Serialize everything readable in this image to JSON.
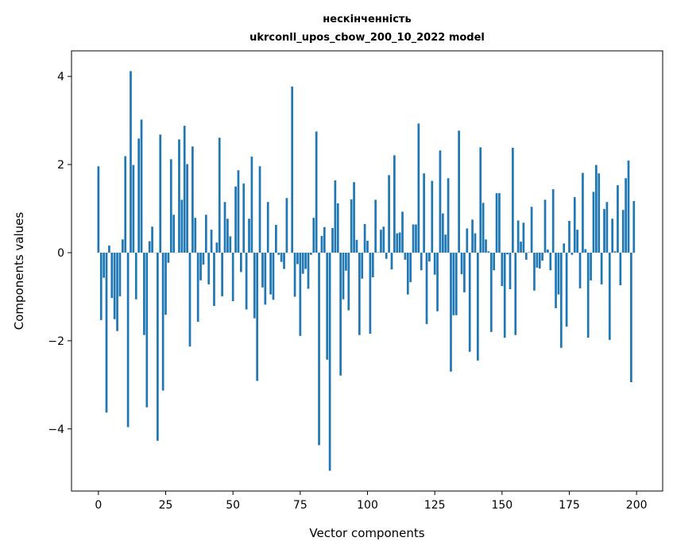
{
  "chart_data": {
    "type": "bar",
    "title": "нескінченність",
    "subtitle": "ukrconll_upos_cbow_200_10_2022 model",
    "xlabel": "Vector components",
    "ylabel": "Components values",
    "xlim": [
      -10,
      209.7
    ],
    "ylim": [
      -5.41,
      4.58
    ],
    "xticks": [
      0,
      25,
      50,
      75,
      100,
      125,
      150,
      175,
      200
    ],
    "yticks": [
      -4,
      -2,
      0,
      2,
      4
    ],
    "ytick_labels": [
      "−4",
      "−2",
      "0",
      "2",
      "4"
    ],
    "grid": false,
    "color": "#1f77b4",
    "values": [
      1.96,
      -1.53,
      -0.57,
      -3.63,
      0.16,
      -1.03,
      -1.51,
      -1.78,
      -0.99,
      0.3,
      2.19,
      -3.96,
      4.12,
      1.99,
      -1.06,
      2.59,
      3.02,
      -1.87,
      -3.51,
      0.26,
      0.59,
      0.0,
      -4.27,
      2.68,
      -3.13,
      -1.41,
      -0.23,
      2.12,
      0.86,
      0.0,
      2.57,
      1.2,
      2.88,
      2.01,
      -2.13,
      2.41,
      0.79,
      -1.57,
      -0.63,
      -0.27,
      0.86,
      -0.72,
      0.52,
      -1.21,
      0.23,
      2.61,
      -0.99,
      1.15,
      0.77,
      0.37,
      -1.1,
      1.5,
      1.87,
      -0.44,
      1.57,
      -1.29,
      0.77,
      2.18,
      -1.49,
      -2.91,
      1.96,
      -0.79,
      -1.18,
      1.15,
      -0.95,
      -1.07,
      0.63,
      -0.05,
      -0.21,
      -0.37,
      1.24,
      0.0,
      3.77,
      -1.0,
      -0.26,
      -1.89,
      -0.48,
      -0.37,
      -0.82,
      -0.05,
      0.79,
      2.75,
      -4.37,
      0.38,
      0.58,
      -2.43,
      -4.95,
      0.56,
      1.64,
      1.12,
      -2.79,
      -1.06,
      -0.41,
      -1.31,
      1.21,
      1.6,
      0.29,
      -1.87,
      -0.59,
      0.65,
      0.27,
      -1.84,
      -0.56,
      1.2,
      0.01,
      0.52,
      0.59,
      -0.14,
      1.76,
      -0.38,
      2.21,
      0.44,
      0.46,
      0.93,
      -0.16,
      -0.95,
      -0.67,
      0.64,
      0.64,
      2.93,
      -0.4,
      1.8,
      -1.62,
      -0.2,
      1.63,
      -0.5,
      -1.33,
      2.32,
      0.89,
      0.41,
      1.69,
      -2.7,
      -1.42,
      -1.42,
      2.77,
      -0.49,
      -0.9,
      0.55,
      -2.25,
      0.75,
      0.44,
      -2.45,
      2.39,
      1.13,
      0.3,
      0.03,
      -1.8,
      -0.4,
      1.35,
      1.35,
      -0.76,
      -1.93,
      -0.04,
      -0.83,
      2.38,
      -1.87,
      0.73,
      0.25,
      0.68,
      -0.16,
      0.01,
      1.04,
      -0.86,
      -0.34,
      -0.36,
      -0.18,
      1.2,
      0.07,
      -0.4,
      1.44,
      -1.26,
      -0.95,
      -2.16,
      0.21,
      -1.68,
      0.72,
      -0.05,
      1.26,
      0.52,
      -0.81,
      1.81,
      0.08,
      -1.93,
      -0.63,
      1.38,
      1.99,
      1.8,
      -0.72,
      0.99,
      1.15,
      -1.98,
      0.77,
      0.03,
      1.53,
      -0.74,
      0.97,
      1.69,
      2.09,
      -2.94,
      1.17
    ]
  }
}
